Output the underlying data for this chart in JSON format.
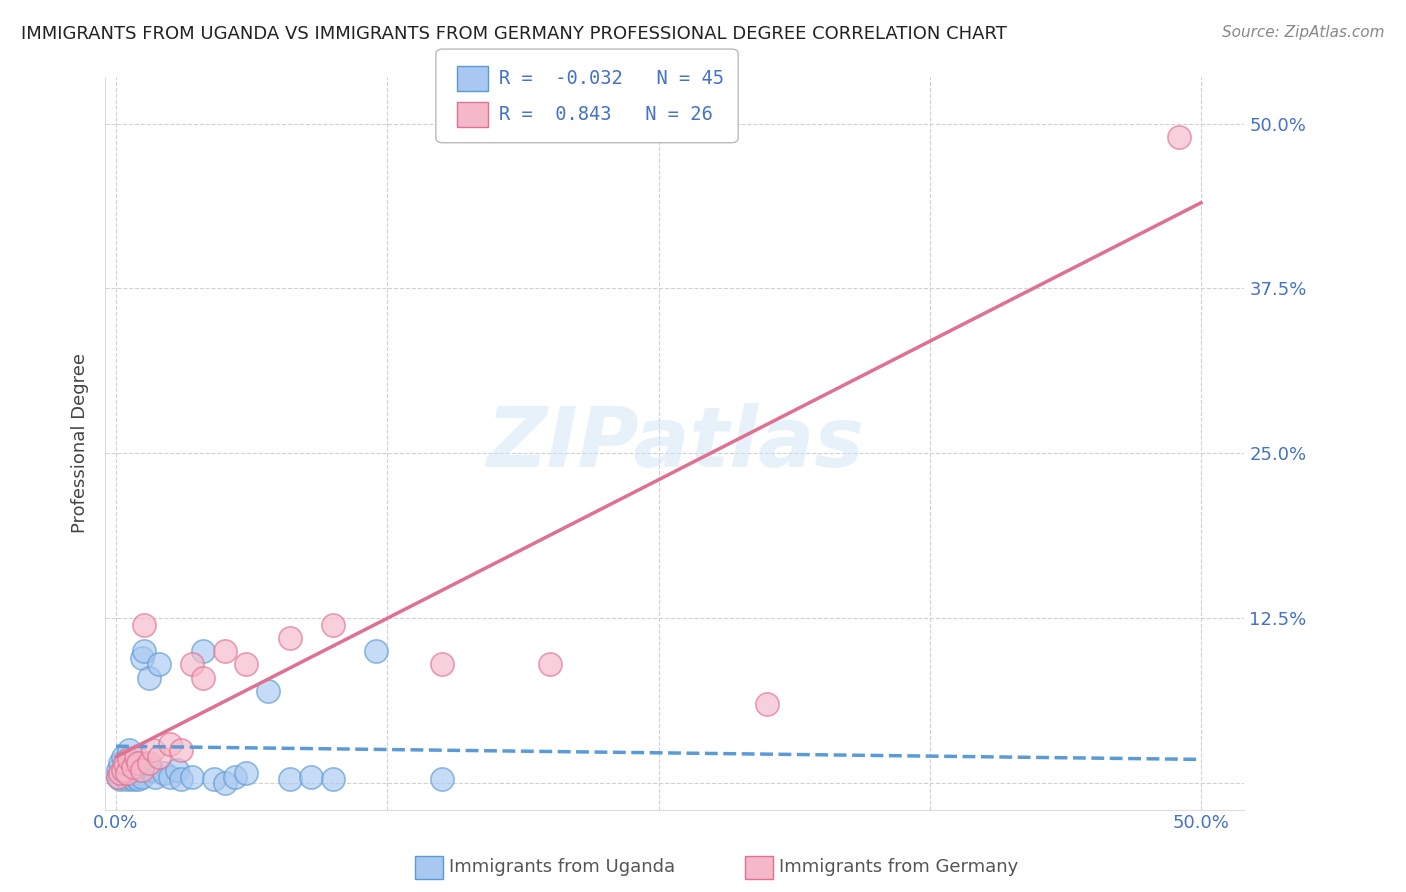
{
  "title": "IMMIGRANTS FROM UGANDA VS IMMIGRANTS FROM GERMANY PROFESSIONAL DEGREE CORRELATION CHART",
  "source": "Source: ZipAtlas.com",
  "ylabel": "Professional Degree",
  "x_tick_labels_show": [
    "0.0%",
    "50.0%"
  ],
  "x_ticks_show": [
    0.0,
    0.5
  ],
  "y_ticks": [
    0.0,
    0.125,
    0.25,
    0.375,
    0.5
  ],
  "y_tick_labels": [
    "",
    "12.5%",
    "25.0%",
    "37.5%",
    "50.0%"
  ],
  "xlim": [
    -0.005,
    0.52
  ],
  "ylim": [
    -0.02,
    0.535
  ],
  "uganda_color": "#A8C8F0",
  "germany_color": "#F5B8C8",
  "uganda_edge": "#5B9BD5",
  "germany_edge": "#E07090",
  "uganda_R": -0.032,
  "uganda_N": 45,
  "germany_R": 0.843,
  "germany_N": 26,
  "watermark": "ZIPatlas",
  "background_color": "#FFFFFF",
  "grid_color": "#CCCCCC",
  "title_fontsize": 13,
  "axis_label_color": "#444444",
  "tick_label_color": "#4472C4",
  "legend_R_color": "#4472C4",
  "uganda_scatter_x": [
    0.001,
    0.001,
    0.002,
    0.002,
    0.003,
    0.003,
    0.004,
    0.004,
    0.005,
    0.005,
    0.005,
    0.006,
    0.006,
    0.007,
    0.007,
    0.008,
    0.008,
    0.009,
    0.009,
    0.01,
    0.01,
    0.011,
    0.012,
    0.012,
    0.013,
    0.015,
    0.016,
    0.018,
    0.02,
    0.022,
    0.025,
    0.028,
    0.03,
    0.035,
    0.04,
    0.045,
    0.05,
    0.055,
    0.06,
    0.07,
    0.08,
    0.09,
    0.1,
    0.12,
    0.15
  ],
  "uganda_scatter_y": [
    0.005,
    0.01,
    0.003,
    0.015,
    0.008,
    0.02,
    0.005,
    0.012,
    0.003,
    0.007,
    0.018,
    0.01,
    0.025,
    0.005,
    0.015,
    0.003,
    0.008,
    0.005,
    0.012,
    0.003,
    0.01,
    0.015,
    0.005,
    0.095,
    0.1,
    0.08,
    0.01,
    0.005,
    0.09,
    0.008,
    0.005,
    0.01,
    0.003,
    0.005,
    0.1,
    0.003,
    0.0,
    0.005,
    0.008,
    0.07,
    0.003,
    0.005,
    0.003,
    0.1,
    0.003
  ],
  "germany_scatter_x": [
    0.001,
    0.002,
    0.003,
    0.004,
    0.005,
    0.006,
    0.008,
    0.009,
    0.01,
    0.012,
    0.013,
    0.015,
    0.017,
    0.02,
    0.025,
    0.03,
    0.035,
    0.04,
    0.05,
    0.06,
    0.08,
    0.1,
    0.15,
    0.2,
    0.3,
    0.49
  ],
  "germany_scatter_y": [
    0.005,
    0.008,
    0.01,
    0.015,
    0.008,
    0.018,
    0.012,
    0.02,
    0.015,
    0.01,
    0.12,
    0.015,
    0.025,
    0.02,
    0.03,
    0.025,
    0.09,
    0.08,
    0.1,
    0.09,
    0.11,
    0.12,
    0.09,
    0.09,
    0.06,
    0.49
  ],
  "germany_line_x0": 0.0,
  "germany_line_y0": 0.02,
  "germany_line_x1": 0.5,
  "germany_line_y1": 0.44,
  "uganda_line_x0": 0.0,
  "uganda_line_y0": 0.028,
  "uganda_line_x1": 0.5,
  "uganda_line_y1": 0.018
}
